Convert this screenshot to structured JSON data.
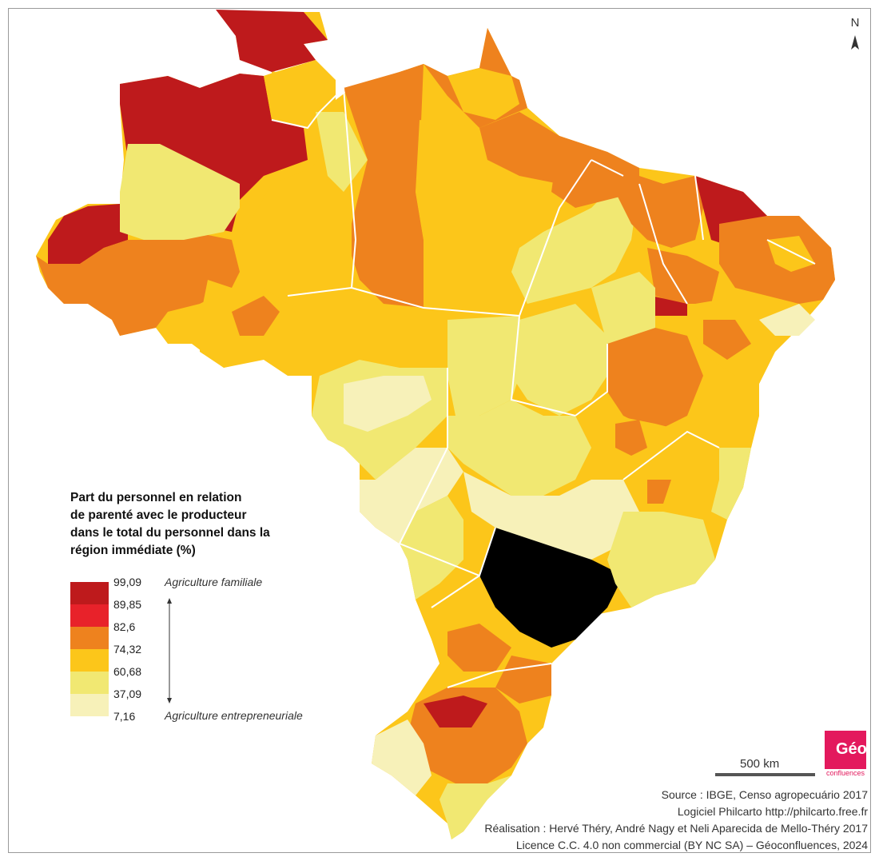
{
  "north": {
    "letter": "N"
  },
  "legend": {
    "title_lines": [
      "Part du personnel en relation",
      "de parenté avec le producteur",
      "dans le total du personnel dans la",
      "région immédiate (%)"
    ],
    "breaks": [
      "99,09",
      "89,85",
      "82,6",
      "74,32",
      "60,68",
      "37,09",
      "7,16"
    ],
    "class_colors": [
      "#be1a1c",
      "#e8222a",
      "#ee821e",
      "#fcc61a",
      "#f1e872",
      "#f7f1b9"
    ],
    "top_label": "Agriculture familiale",
    "bottom_label": "Agriculture entrepreneuriale"
  },
  "scale": {
    "label": "500 km"
  },
  "logo": {
    "mark": "Géo",
    "sub": "confluences"
  },
  "credits": [
    "Source : IBGE, Censo agropecuário 2017",
    "Logiciel Philcarto http://philcarto.free.fr",
    "Réalisation : Hervé Théry, André Nagy et Neli Aparecida de Mello-Théry 2017",
    "Licence C.C. 4.0 non commercial (BY NC SA) – Géoconfluences, 2024"
  ]
}
